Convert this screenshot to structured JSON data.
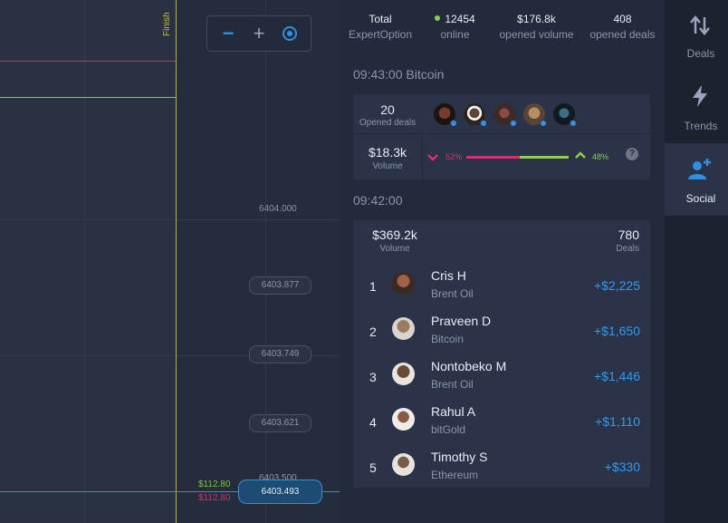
{
  "chart": {
    "finish_label": "Finish",
    "prices": {
      "p1": "6404.000",
      "p2": "6403.877",
      "p3": "6403.749",
      "p4": "6403.621",
      "p5": "6403.500",
      "current": "6403.493"
    },
    "amount_up": "$112.80",
    "amount_down": "$112.80",
    "zoom": {
      "minus": "−",
      "plus": "+"
    }
  },
  "stats": {
    "total_value": "Total",
    "total_label": "ExpertOption",
    "online_value": "12454",
    "online_label": "online",
    "volume_value": "$176.8k",
    "volume_label": "opened volume",
    "deals_value": "408",
    "deals_label": "opened deals"
  },
  "section1": {
    "time": "09:43:00 Bitcoin",
    "opened_deals_value": "20",
    "opened_deals_label": "Opened deals",
    "volume_value": "$18.3k",
    "volume_label": "Volume",
    "down_percent": "52%",
    "up_percent": "48%",
    "down_fraction": 0.52,
    "up_fraction": 0.48,
    "help": "?"
  },
  "section2": {
    "time": "09:42:00",
    "volume_value": "$369.2k",
    "volume_label": "Volume",
    "deals_value": "780",
    "deals_label": "Deals",
    "leaders": [
      {
        "rank": "1",
        "name": "Cris H",
        "asset": "Brent Oil",
        "profit": "+$2,225"
      },
      {
        "rank": "2",
        "name": "Praveen D",
        "asset": "Bitcoin",
        "profit": "+$1,650"
      },
      {
        "rank": "3",
        "name": "Nontobeko M",
        "asset": "Brent Oil",
        "profit": "+$1,446"
      },
      {
        "rank": "4",
        "name": "Rahul A",
        "asset": "bitGold",
        "profit": "+$1,110"
      },
      {
        "rank": "5",
        "name": "Timothy S",
        "asset": "Ethereum",
        "profit": "+$330"
      }
    ]
  },
  "nav": {
    "deals": "Deals",
    "trends": "Trends",
    "social": "Social"
  },
  "colors": {
    "accent_blue": "#2f8fe0",
    "down_red": "#d9306b",
    "up_green": "#8bd04a",
    "profit_blue": "#2f9bf0"
  }
}
